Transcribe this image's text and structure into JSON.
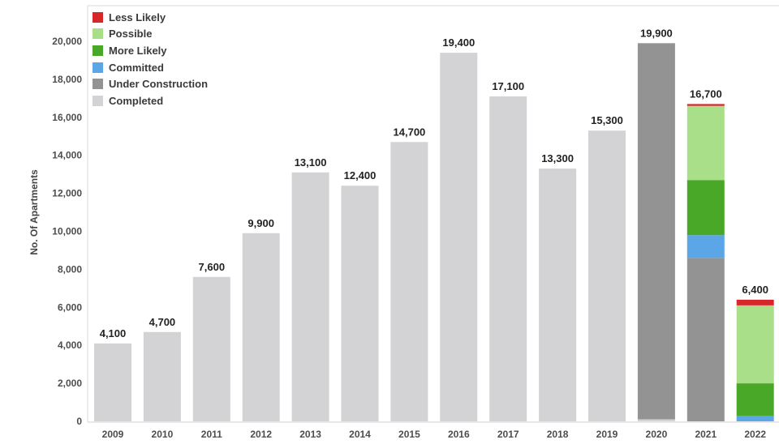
{
  "chart_data": {
    "type": "bar",
    "stacked": true,
    "title": "",
    "xlabel": "",
    "ylabel": "No. Of Apartments",
    "ylim": [
      0,
      21000
    ],
    "yticks": [
      0,
      2000,
      4000,
      6000,
      8000,
      10000,
      12000,
      14000,
      16000,
      18000,
      20000
    ],
    "ytick_labels": [
      "0",
      "2,000",
      "4,000",
      "6,000",
      "8,000",
      "10,000",
      "12,000",
      "14,000",
      "16,000",
      "18,000",
      "20,000"
    ],
    "grid": false,
    "legend_position": "top-left",
    "categories": [
      "2009",
      "2010",
      "2011",
      "2012",
      "2013",
      "2014",
      "2015",
      "2016",
      "2017",
      "2018",
      "2019",
      "2020",
      "2021",
      "2022"
    ],
    "series": [
      {
        "name": "Completed",
        "color": "#d3d3d5",
        "values": [
          4100,
          4700,
          7600,
          9900,
          13100,
          12400,
          14700,
          19400,
          17100,
          13300,
          15300,
          100,
          0,
          0
        ]
      },
      {
        "name": "Under Construction",
        "color": "#939393",
        "values": [
          0,
          0,
          0,
          0,
          0,
          0,
          0,
          0,
          0,
          0,
          0,
          19800,
          8600,
          0
        ]
      },
      {
        "name": "Committed",
        "color": "#5aa6e6",
        "values": [
          0,
          0,
          0,
          0,
          0,
          0,
          0,
          0,
          0,
          0,
          0,
          0,
          1200,
          300
        ]
      },
      {
        "name": "More Likely",
        "color": "#4aa828",
        "values": [
          0,
          0,
          0,
          0,
          0,
          0,
          0,
          0,
          0,
          0,
          0,
          0,
          2900,
          1700
        ]
      },
      {
        "name": "Possible",
        "color": "#a8df88",
        "values": [
          0,
          0,
          0,
          0,
          0,
          0,
          0,
          0,
          0,
          0,
          0,
          0,
          3900,
          4100
        ]
      },
      {
        "name": "Less Likely",
        "color": "#d6282b",
        "values": [
          0,
          0,
          0,
          0,
          0,
          0,
          0,
          0,
          0,
          0,
          0,
          0,
          100,
          300
        ]
      }
    ],
    "totals": [
      4100,
      4700,
      7600,
      9900,
      13100,
      12400,
      14700,
      19400,
      17100,
      13300,
      15300,
      19900,
      16700,
      6400
    ],
    "total_labels": [
      "4,100",
      "4,700",
      "7,600",
      "9,900",
      "13,100",
      "12,400",
      "14,700",
      "19,400",
      "17,100",
      "13,300",
      "15,300",
      "19,900",
      "16,700",
      "6,400"
    ],
    "legend_order": [
      "Less Likely",
      "Possible",
      "More Likely",
      "Committed",
      "Under Construction",
      "Completed"
    ]
  }
}
